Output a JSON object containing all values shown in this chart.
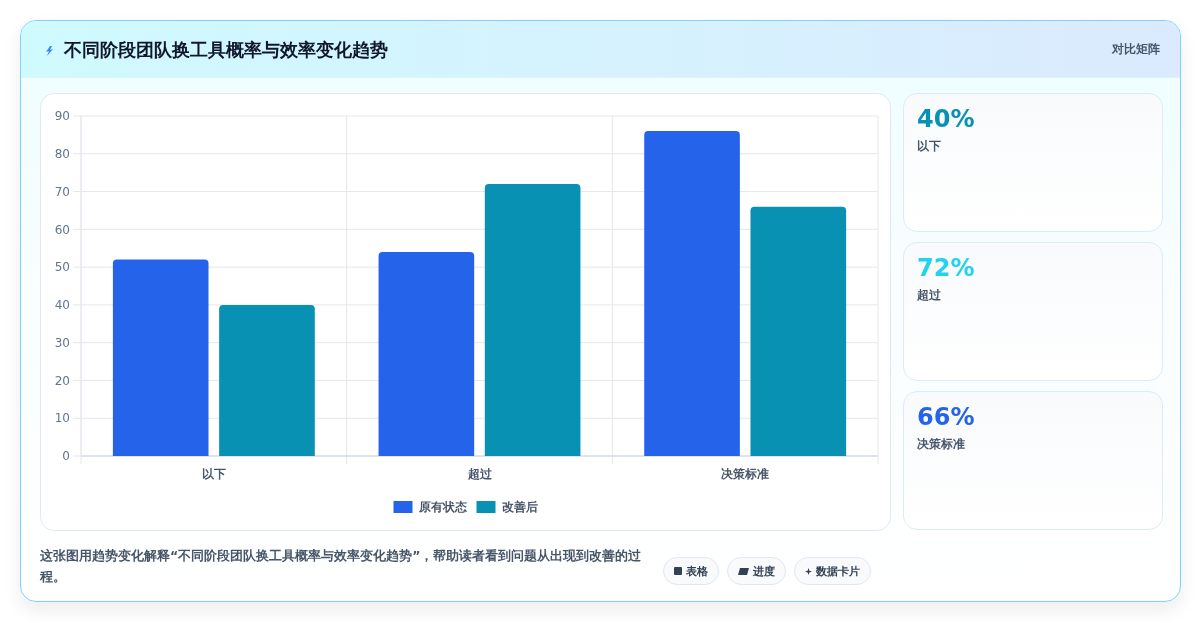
{
  "chart_data": [
    {
      "type": "bar",
      "title": "不同阶段团队换工具概率与效率变化趋势",
      "categories": [
        "以下",
        "超过",
        "决策标准"
      ],
      "series": [
        {
          "name": "原有状态",
          "color": "#2563eb",
          "values": [
            52,
            54,
            86
          ]
        },
        {
          "name": "改善后",
          "color": "#0891b2",
          "values": [
            40,
            72,
            66
          ]
        }
      ],
      "ylim": [
        0,
        90
      ],
      "yticks": [
        0,
        10,
        20,
        30,
        40,
        50,
        60,
        70,
        80,
        90
      ],
      "grid": true,
      "legend": "bottom",
      "annotations": [
        "对比矩阵",
        "这张图用趋势变化解释“不同阶段团队换工具概率与效率变化趋势”，帮助读者看到问题从出现到改善的过程。",
        "表格",
        "进度",
        "数据卡片"
      ]
    },
    {
      "type": "other",
      "annotations": [
        "40%",
        "以下",
        "72%",
        "超过",
        "66%",
        "决策标准"
      ],
      "colors": [
        "#0891b2",
        "#22d3ee",
        "#2563eb"
      ]
    }
  ]
}
